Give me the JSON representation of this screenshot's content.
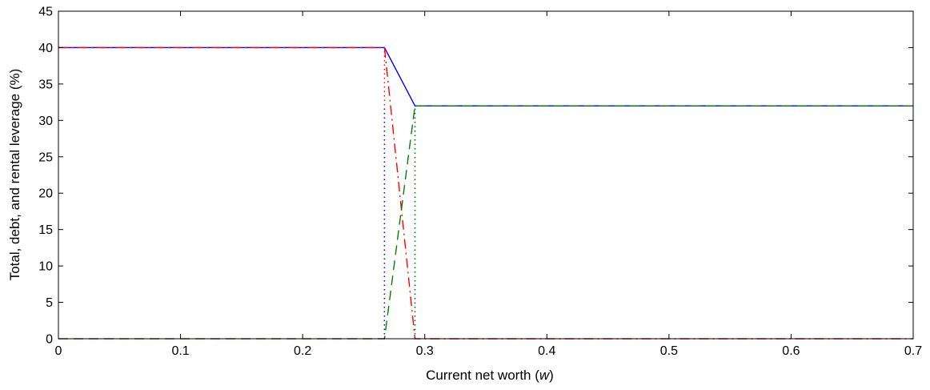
{
  "chart_data": {
    "type": "line",
    "xlabel": "Current net worth (w)",
    "xlabel_prefix": "Current net worth (",
    "xlabel_var": "w",
    "xlabel_suffix": ")",
    "ylabel": "Total, debt, and rental leverage (%)",
    "xlim": [
      0,
      0.7
    ],
    "ylim": [
      0,
      45
    ],
    "xticks": [
      0,
      0.1,
      0.2,
      0.3,
      0.4,
      0.5,
      0.6,
      0.7
    ],
    "xtick_labels": [
      "0",
      "0.1",
      "0.2",
      "0.3",
      "0.4",
      "0.5",
      "0.6",
      "0.7"
    ],
    "yticks": [
      0,
      5,
      10,
      15,
      20,
      25,
      30,
      35,
      40,
      45
    ],
    "ytick_labels": [
      "0",
      "5",
      "10",
      "15",
      "20",
      "25",
      "30",
      "35",
      "40",
      "45"
    ],
    "grid": false,
    "series": [
      {
        "style": "solid",
        "color": "#0000ff",
        "x": [
          0,
          0.267,
          0.292,
          0.7
        ],
        "y": [
          40,
          40,
          32,
          32
        ]
      },
      {
        "style": "dashdot",
        "color": "#ff0000",
        "x": [
          0,
          0.267,
          0.292,
          0.7
        ],
        "y": [
          40,
          40,
          0,
          0
        ]
      },
      {
        "style": "dashed",
        "color": "#008000",
        "x": [
          0,
          0.267,
          0.292,
          0.7
        ],
        "y": [
          0,
          0,
          32,
          32
        ]
      },
      {
        "style": "dotted",
        "color": "#ff0000",
        "x": [
          0.267,
          0.267
        ],
        "y": [
          0,
          40
        ]
      },
      {
        "style": "dotted",
        "color": "#0000ff",
        "x": [
          0.267,
          0.267
        ],
        "y": [
          0,
          32
        ]
      },
      {
        "style": "dotted",
        "color": "#0000ff",
        "x": [
          0.292,
          0.292
        ],
        "y": [
          0,
          32
        ]
      },
      {
        "style": "dotted",
        "color": "#008000",
        "x": [
          0.292,
          0.292
        ],
        "y": [
          0,
          32
        ]
      }
    ]
  }
}
